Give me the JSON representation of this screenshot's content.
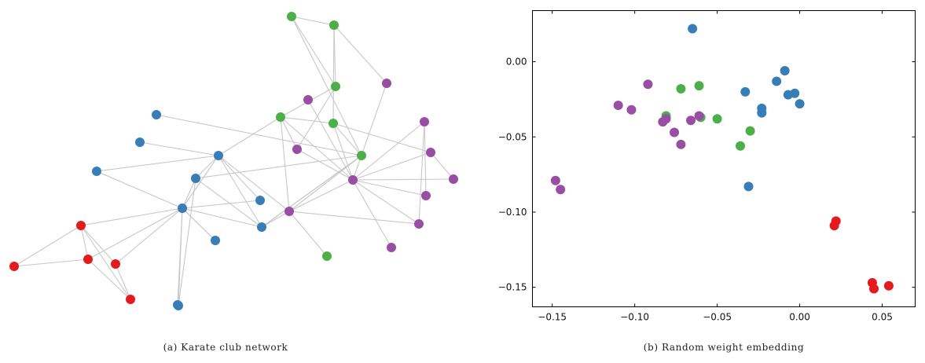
{
  "colors": {
    "red": "#e41a1c",
    "blue": "#377eb8",
    "green": "#4daf4a",
    "purple": "#984ea3",
    "edge": "#c8c8c8"
  },
  "chart_data": [
    {
      "type": "network",
      "caption": "(a) Karate club network",
      "nodes": [
        {
          "id": 1,
          "group": "green"
        },
        {
          "id": 2,
          "group": "green"
        },
        {
          "id": 3,
          "group": "green"
        },
        {
          "id": 4,
          "group": "purple"
        },
        {
          "id": 5,
          "group": "purple"
        },
        {
          "id": 6,
          "group": "green"
        },
        {
          "id": 7,
          "group": "green"
        },
        {
          "id": 8,
          "group": "purple"
        },
        {
          "id": 9,
          "group": "purple"
        },
        {
          "id": 10,
          "group": "purple"
        },
        {
          "id": 11,
          "group": "purple"
        },
        {
          "id": 12,
          "group": "purple"
        },
        {
          "id": 13,
          "group": "green"
        },
        {
          "id": 14,
          "group": "purple"
        },
        {
          "id": 15,
          "group": "purple"
        },
        {
          "id": 16,
          "group": "purple"
        },
        {
          "id": 17,
          "group": "purple"
        },
        {
          "id": 18,
          "group": "green"
        },
        {
          "id": 19,
          "group": "blue"
        },
        {
          "id": 20,
          "group": "blue"
        },
        {
          "id": 21,
          "group": "blue"
        },
        {
          "id": 22,
          "group": "blue"
        },
        {
          "id": 23,
          "group": "blue"
        },
        {
          "id": 24,
          "group": "blue"
        },
        {
          "id": 25,
          "group": "blue"
        },
        {
          "id": 26,
          "group": "blue"
        },
        {
          "id": 27,
          "group": "blue"
        },
        {
          "id": 28,
          "group": "blue"
        },
        {
          "id": 29,
          "group": "red"
        },
        {
          "id": 30,
          "group": "red"
        },
        {
          "id": 31,
          "group": "red"
        },
        {
          "id": 32,
          "group": "red"
        },
        {
          "id": 33,
          "group": "red"
        },
        {
          "id": 34,
          "group": "blue"
        }
      ],
      "edges": [
        [
          1,
          2
        ],
        [
          1,
          3
        ],
        [
          2,
          3
        ],
        [
          1,
          13
        ],
        [
          2,
          7
        ],
        [
          2,
          4
        ],
        [
          3,
          6
        ],
        [
          3,
          8
        ],
        [
          6,
          7
        ],
        [
          6,
          8
        ],
        [
          6,
          9
        ],
        [
          7,
          9
        ],
        [
          7,
          11
        ],
        [
          7,
          13
        ],
        [
          4,
          9
        ],
        [
          5,
          9
        ],
        [
          8,
          9
        ],
        [
          9,
          10
        ],
        [
          9,
          11
        ],
        [
          9,
          12
        ],
        [
          9,
          15
        ],
        [
          9,
          16
        ],
        [
          9,
          17
        ],
        [
          9,
          14
        ],
        [
          10,
          15
        ],
        [
          10,
          16
        ],
        [
          11,
          12
        ],
        [
          6,
          14
        ],
        [
          13,
          14
        ],
        [
          14,
          16
        ],
        [
          14,
          18
        ],
        [
          14,
          13
        ],
        [
          13,
          19
        ],
        [
          13,
          26
        ],
        [
          13,
          24
        ],
        [
          6,
          20
        ],
        [
          20,
          14
        ],
        [
          21,
          20
        ],
        [
          22,
          20
        ],
        [
          23,
          20
        ],
        [
          23,
          25
        ],
        [
          23,
          22
        ],
        [
          23,
          24
        ],
        [
          23,
          27
        ],
        [
          23,
          26
        ],
        [
          23,
          28
        ],
        [
          20,
          24
        ],
        [
          20,
          26
        ],
        [
          24,
          25
        ],
        [
          26,
          13
        ],
        [
          26,
          14
        ],
        [
          27,
          20
        ],
        [
          28,
          23
        ],
        [
          29,
          23
        ],
        [
          29,
          31
        ],
        [
          29,
          30
        ],
        [
          30,
          23
        ],
        [
          30,
          32
        ],
        [
          29,
          32
        ],
        [
          31,
          23
        ],
        [
          31,
          32
        ],
        [
          33,
          29
        ],
        [
          33,
          30
        ],
        [
          34,
          23
        ],
        [
          24,
          26
        ],
        [
          23,
          20
        ]
      ]
    },
    {
      "type": "scatter",
      "caption": "(b) Random weight embedding",
      "xlim": [
        -0.162,
        0.07
      ],
      "ylim": [
        -0.163,
        0.034
      ],
      "xticks": [
        -0.15,
        -0.1,
        -0.05,
        0.0,
        0.05
      ],
      "xtick_labels": [
        "−0.15",
        "−0.10",
        "−0.05",
        "0.00",
        "0.05"
      ],
      "yticks": [
        0.0,
        -0.05,
        -0.1,
        -0.15
      ],
      "ytick_labels": [
        "0.00",
        "−0.05",
        "−0.10",
        "−0.15"
      ],
      "points": [
        {
          "x": -0.065,
          "y": 0.022,
          "group": "blue"
        },
        {
          "x": -0.009,
          "y": -0.006,
          "group": "blue"
        },
        {
          "x": -0.014,
          "y": -0.013,
          "group": "blue"
        },
        {
          "x": -0.003,
          "y": -0.021,
          "group": "blue"
        },
        {
          "x": -0.007,
          "y": -0.022,
          "group": "blue"
        },
        {
          "x": 0.0,
          "y": -0.028,
          "group": "blue"
        },
        {
          "x": -0.033,
          "y": -0.02,
          "group": "blue"
        },
        {
          "x": -0.023,
          "y": -0.031,
          "group": "blue"
        },
        {
          "x": -0.023,
          "y": -0.034,
          "group": "blue"
        },
        {
          "x": -0.031,
          "y": -0.083,
          "group": "blue"
        },
        {
          "x": -0.072,
          "y": -0.018,
          "group": "green"
        },
        {
          "x": -0.061,
          "y": -0.016,
          "group": "green"
        },
        {
          "x": -0.081,
          "y": -0.036,
          "group": "green"
        },
        {
          "x": -0.06,
          "y": -0.037,
          "group": "green"
        },
        {
          "x": -0.05,
          "y": -0.038,
          "group": "green"
        },
        {
          "x": -0.03,
          "y": -0.046,
          "group": "green"
        },
        {
          "x": -0.036,
          "y": -0.056,
          "group": "green"
        },
        {
          "x": -0.092,
          "y": -0.015,
          "group": "purple"
        },
        {
          "x": -0.11,
          "y": -0.029,
          "group": "purple"
        },
        {
          "x": -0.102,
          "y": -0.032,
          "group": "purple"
        },
        {
          "x": -0.083,
          "y": -0.04,
          "group": "purple"
        },
        {
          "x": -0.081,
          "y": -0.038,
          "group": "purple"
        },
        {
          "x": -0.066,
          "y": -0.039,
          "group": "purple"
        },
        {
          "x": -0.061,
          "y": -0.036,
          "group": "purple"
        },
        {
          "x": -0.076,
          "y": -0.047,
          "group": "purple"
        },
        {
          "x": -0.072,
          "y": -0.055,
          "group": "purple"
        },
        {
          "x": -0.148,
          "y": -0.079,
          "group": "purple"
        },
        {
          "x": -0.145,
          "y": -0.085,
          "group": "purple"
        },
        {
          "x": 0.022,
          "y": -0.106,
          "group": "red"
        },
        {
          "x": 0.021,
          "y": -0.109,
          "group": "red"
        },
        {
          "x": 0.044,
          "y": -0.147,
          "group": "red"
        },
        {
          "x": 0.045,
          "y": -0.151,
          "group": "red"
        },
        {
          "x": 0.054,
          "y": -0.149,
          "group": "red"
        }
      ]
    }
  ]
}
